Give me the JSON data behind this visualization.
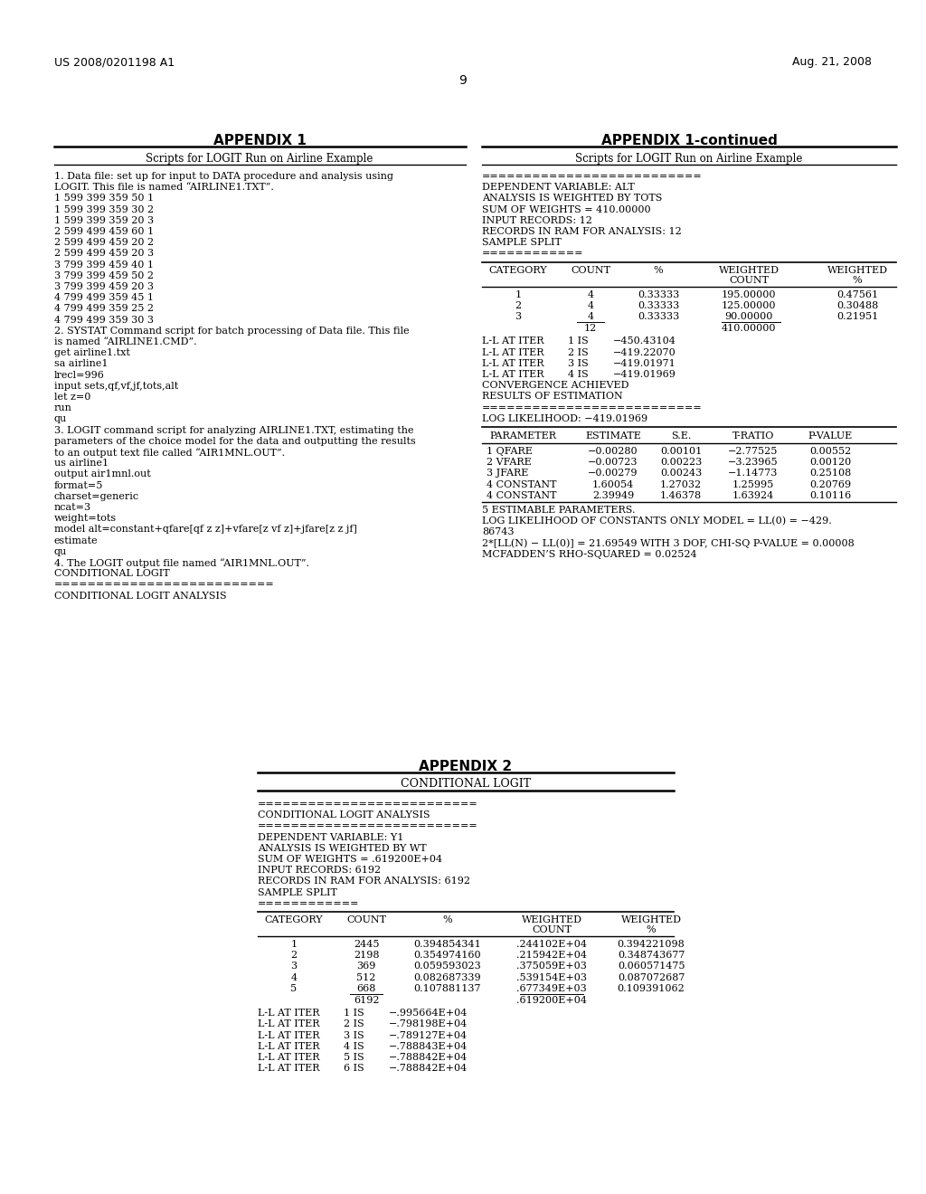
{
  "background_color": "#ffffff",
  "header_left": "US 2008/0201198 A1",
  "header_right": "Aug. 21, 2008",
  "page_number": "9"
}
